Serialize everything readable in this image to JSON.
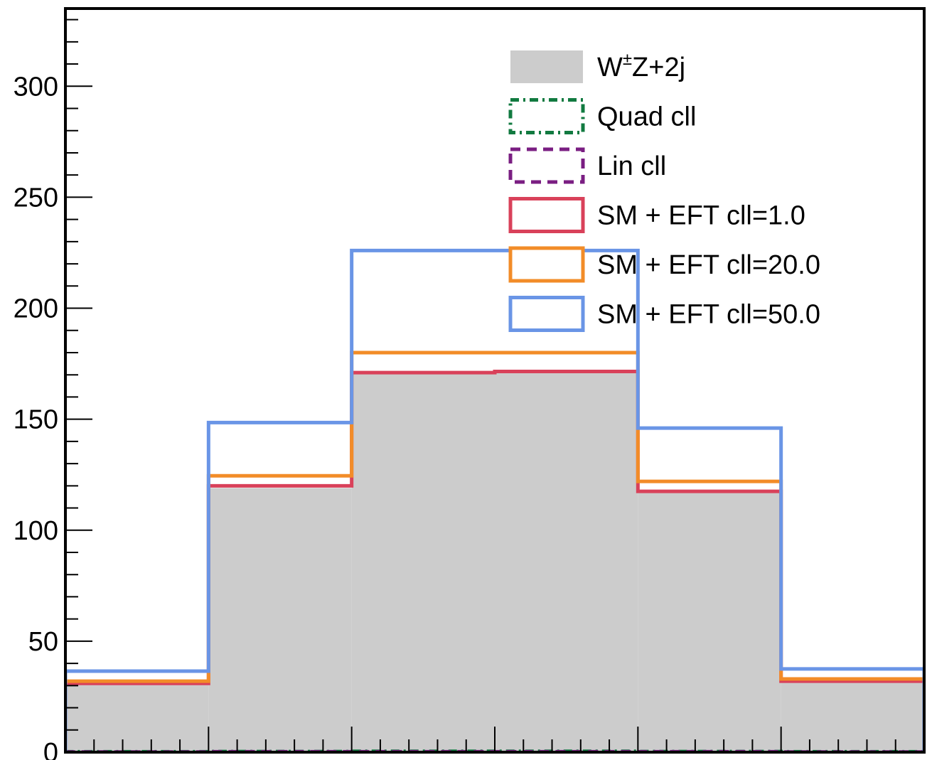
{
  "chart_data": {
    "type": "step-histogram",
    "title": "",
    "xlabel": "",
    "ylabel": "",
    "ylim": [
      0,
      335
    ],
    "bins": 6,
    "y_ticks": [
      0,
      50,
      100,
      150,
      200,
      250,
      300
    ],
    "y_tick_labels": [
      "0",
      "50",
      "100",
      "150",
      "200",
      "250",
      "300"
    ],
    "legend_position": "top-right",
    "series": [
      {
        "name": "W±Z+2j",
        "name_base": "W",
        "name_sup": "±",
        "name_rest": "Z+2j",
        "style": "filled",
        "fill": "#cccccc",
        "values": [
          31,
          119,
          171,
          171,
          117,
          32
        ]
      },
      {
        "name": "Quad cll",
        "style": "dash-dot",
        "color": "#117a40",
        "values": [
          0.2,
          0.3,
          0.4,
          0.4,
          0.3,
          0.2
        ]
      },
      {
        "name": "Lin cll",
        "style": "dashed",
        "color": "#7a1e82",
        "values": [
          0.1,
          0.2,
          0.2,
          0.2,
          0.2,
          0.1
        ]
      },
      {
        "name": "SM + EFT cll=1.0",
        "style": "solid",
        "color": "#d9415a",
        "values": [
          31,
          120,
          171,
          171.5,
          117.5,
          32
        ]
      },
      {
        "name": "SM + EFT cll=20.0",
        "style": "solid",
        "color": "#f28c28",
        "values": [
          32,
          124.5,
          180,
          180,
          122,
          33
        ]
      },
      {
        "name": "SM + EFT cll=50.0",
        "style": "solid",
        "color": "#6a95e6",
        "values": [
          36.5,
          148.5,
          226,
          226,
          146,
          37.5
        ]
      }
    ]
  }
}
